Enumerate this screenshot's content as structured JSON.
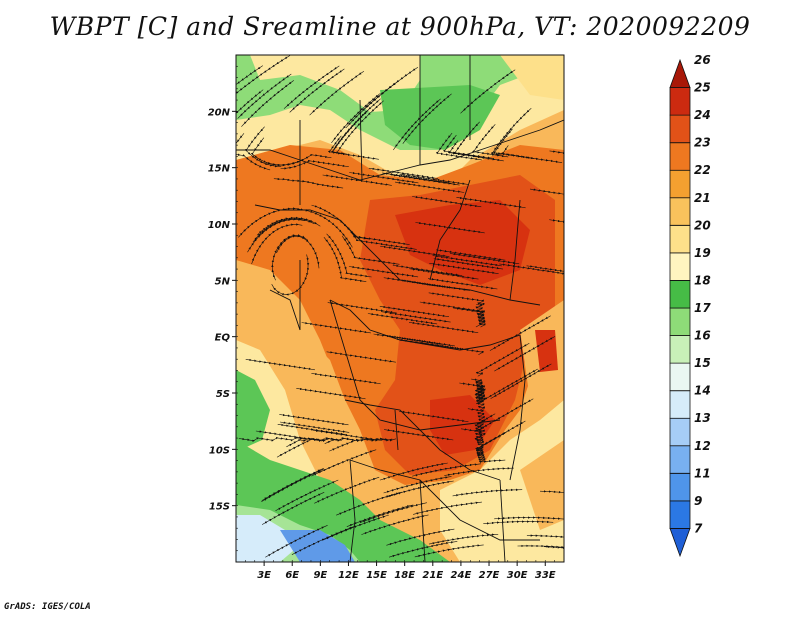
{
  "title": "WBPT [C] and Sreamline at 900hPa, VT: 2020092209",
  "credit": "GrADS: IGES/COLA",
  "map": {
    "lon_labels": [
      "3E",
      "6E",
      "9E",
      "12E",
      "15E",
      "18E",
      "21E",
      "24E",
      "27E",
      "30E",
      "33E"
    ],
    "lat_labels": [
      "20N",
      "15N",
      "10N",
      "5N",
      "EQ",
      "5S",
      "10S",
      "15S"
    ],
    "lon_range": [
      0,
      35
    ],
    "lat_range": [
      -20,
      25
    ]
  },
  "colorbar": {
    "levels": [
      "7",
      "9",
      "11",
      "12",
      "13",
      "14",
      "15",
      "16",
      "17",
      "18",
      "19",
      "20",
      "21",
      "22",
      "23",
      "24",
      "25",
      "26"
    ],
    "colors": [
      "#1f5fd6",
      "#2b78e4",
      "#4f95ea",
      "#78b0f0",
      "#a6cdf6",
      "#d6ecfa",
      "#eaf7f2",
      "#c8f0b8",
      "#8edc78",
      "#46bc46",
      "#fff5c0",
      "#fde08a",
      "#f9c25c",
      "#f4a030",
      "#ee7820",
      "#e25218",
      "#cc2a10",
      "#a81808"
    ]
  },
  "colors": {
    "deep_red": "#d73210",
    "red_orange": "#e8581c",
    "orange": "#f38c30",
    "light_orange": "#f9b85a",
    "yellow": "#fde8a0",
    "green": "#5cc656",
    "light_green": "#a6e496",
    "light_blue": "#a6cdf6",
    "blue": "#5f9ae8"
  }
}
